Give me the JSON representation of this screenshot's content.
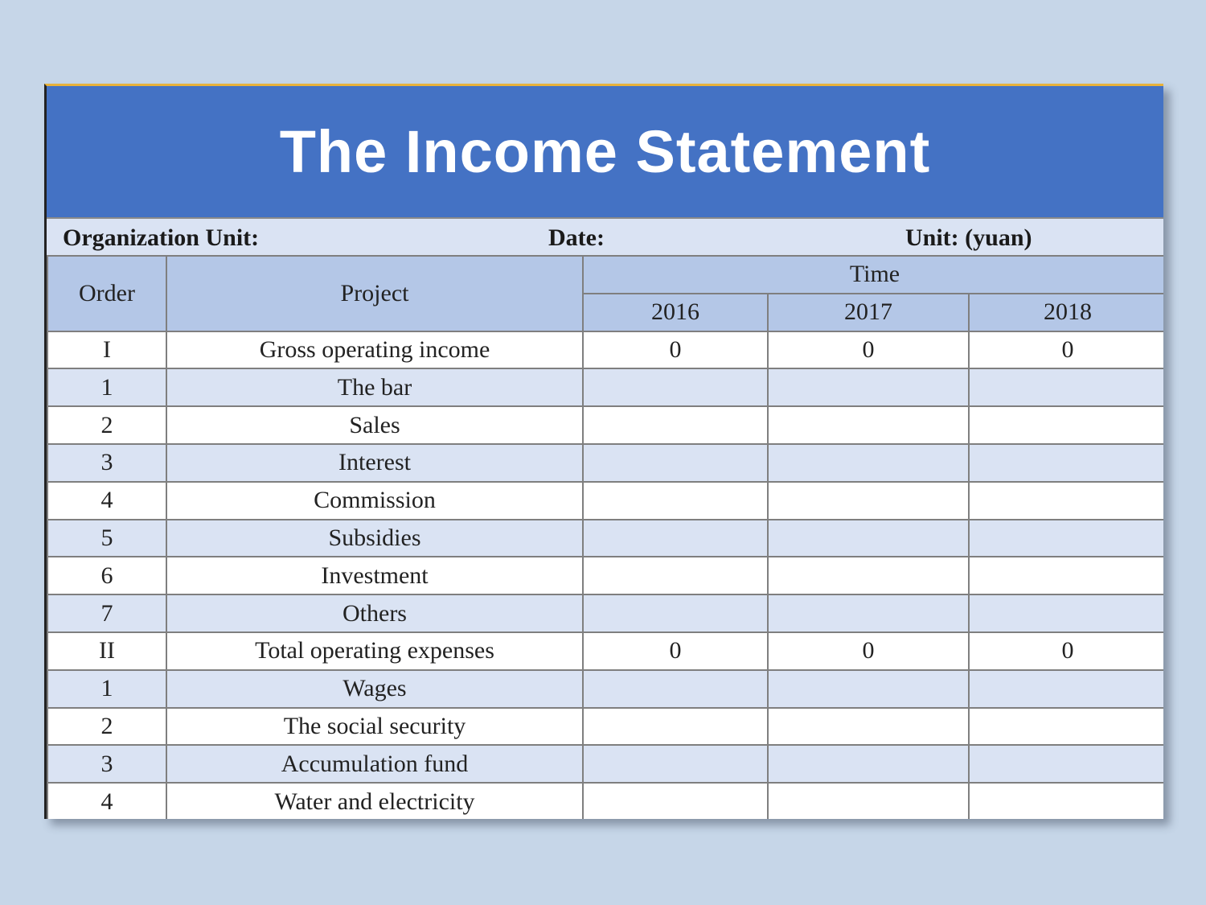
{
  "title": "The Income Statement",
  "info": {
    "organization_label": "Organization Unit:",
    "date_label": "Date:",
    "unit_label": "Unit: (yuan)"
  },
  "header": {
    "order": "Order",
    "project": "Project",
    "time": "Time",
    "years": [
      "2016",
      "2017",
      "2018"
    ]
  },
  "rows": [
    {
      "order": "I",
      "project": "Gross operating income",
      "values": [
        "0",
        "0",
        "0"
      ]
    },
    {
      "order": "1",
      "project": "The bar",
      "values": [
        "",
        "",
        ""
      ]
    },
    {
      "order": "2",
      "project": "Sales",
      "values": [
        "",
        "",
        ""
      ]
    },
    {
      "order": "3",
      "project": "Interest",
      "values": [
        "",
        "",
        ""
      ]
    },
    {
      "order": "4",
      "project": "Commission",
      "values": [
        "",
        "",
        ""
      ]
    },
    {
      "order": "5",
      "project": "Subsidies",
      "values": [
        "",
        "",
        ""
      ]
    },
    {
      "order": "6",
      "project": "Investment",
      "values": [
        "",
        "",
        ""
      ]
    },
    {
      "order": "7",
      "project": "Others",
      "values": [
        "",
        "",
        ""
      ]
    },
    {
      "order": "II",
      "project": "Total operating expenses",
      "values": [
        "0",
        "0",
        "0"
      ]
    },
    {
      "order": "1",
      "project": "Wages",
      "values": [
        "",
        "",
        ""
      ]
    },
    {
      "order": "2",
      "project": "The social security",
      "values": [
        "",
        "",
        ""
      ]
    },
    {
      "order": "3",
      "project": "Accumulation fund",
      "values": [
        "",
        "",
        ""
      ]
    },
    {
      "order": "4",
      "project": "Water and electricity",
      "values": [
        "",
        "",
        ""
      ]
    }
  ],
  "colors": {
    "title_bg": "#4472c4",
    "header_bg": "#b4c7e7",
    "alt_row_bg": "#dae3f3",
    "page_bg": "#c6d6e8"
  }
}
